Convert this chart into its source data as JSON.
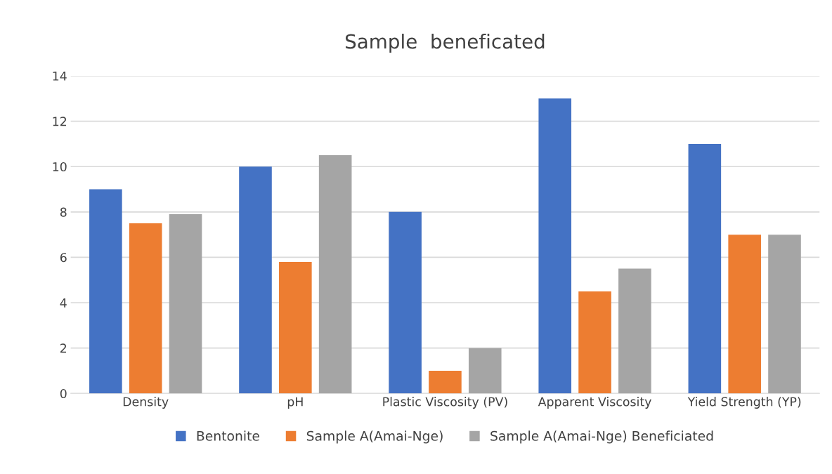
{
  "chart_data": {
    "type": "bar",
    "title": "Sample  beneficated",
    "categories": [
      "Density",
      "pH",
      "Plastic Viscosity (PV)",
      "Apparent Viscosity",
      "Yield Strength (YP)"
    ],
    "series": [
      {
        "name": "Bentonite",
        "color": "#4472c4",
        "values": [
          9,
          10,
          8,
          13,
          11
        ]
      },
      {
        "name": "Sample A(Amai-Nge)",
        "color": "#ed7d31",
        "values": [
          7.5,
          5.8,
          1,
          4.5,
          7
        ]
      },
      {
        "name": "Sample A(Amai-Nge) Beneficiated",
        "color": "#a5a5a5",
        "values": [
          7.9,
          10.5,
          2,
          5.5,
          7
        ]
      }
    ],
    "ylim": [
      0,
      14
    ],
    "yticks": [
      0,
      2,
      4,
      6,
      8,
      10,
      12,
      14
    ],
    "grid": "y",
    "legend": "bottom"
  }
}
